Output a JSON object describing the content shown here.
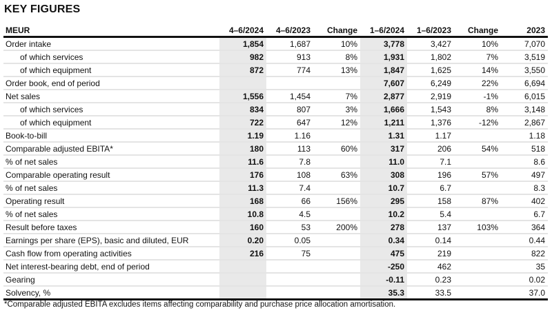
{
  "title": "KEY FIGURES",
  "headers": [
    "MEUR",
    "4–6/2024",
    "4–6/2023",
    "Change",
    "1–6/2024",
    "1–6/2023",
    "Change",
    "2023"
  ],
  "rows": [
    {
      "label": "Order intake",
      "indent": false,
      "values": [
        "1,854",
        "1,687",
        "10%",
        "3,778",
        "3,427",
        "10%",
        "7,070"
      ]
    },
    {
      "label": "of which services",
      "indent": true,
      "values": [
        "982",
        "913",
        "8%",
        "1,931",
        "1,802",
        "7%",
        "3,519"
      ]
    },
    {
      "label": "of which equipment",
      "indent": true,
      "values": [
        "872",
        "774",
        "13%",
        "1,847",
        "1,625",
        "14%",
        "3,550"
      ]
    },
    {
      "label": "Order book, end of period",
      "indent": false,
      "values": [
        "",
        "",
        "",
        "7,607",
        "6,249",
        "22%",
        "6,694"
      ]
    },
    {
      "label": "Net sales",
      "indent": false,
      "values": [
        "1,556",
        "1,454",
        "7%",
        "2,877",
        "2,919",
        "-1%",
        "6,015"
      ]
    },
    {
      "label": "of which services",
      "indent": true,
      "values": [
        "834",
        "807",
        "3%",
        "1,666",
        "1,543",
        "8%",
        "3,148"
      ]
    },
    {
      "label": "of which equipment",
      "indent": true,
      "values": [
        "722",
        "647",
        "12%",
        "1,211",
        "1,376",
        "-12%",
        "2,867"
      ]
    },
    {
      "label": "Book-to-bill",
      "indent": false,
      "values": [
        "1.19",
        "1.16",
        "",
        "1.31",
        "1.17",
        "",
        "1.18"
      ]
    },
    {
      "label": "Comparable adjusted EBITA*",
      "indent": false,
      "values": [
        "180",
        "113",
        "60%",
        "317",
        "206",
        "54%",
        "518"
      ]
    },
    {
      "label": "% of net sales",
      "indent": false,
      "values": [
        "11.6",
        "7.8",
        "",
        "11.0",
        "7.1",
        "",
        "8.6"
      ]
    },
    {
      "label": "Comparable operating result",
      "indent": false,
      "values": [
        "176",
        "108",
        "63%",
        "308",
        "196",
        "57%",
        "497"
      ]
    },
    {
      "label": "% of net sales",
      "indent": false,
      "values": [
        "11.3",
        "7.4",
        "",
        "10.7",
        "6.7",
        "",
        "8.3"
      ]
    },
    {
      "label": "Operating result",
      "indent": false,
      "values": [
        "168",
        "66",
        "156%",
        "295",
        "158",
        "87%",
        "402"
      ]
    },
    {
      "label": "% of net sales",
      "indent": false,
      "values": [
        "10.8",
        "4.5",
        "",
        "10.2",
        "5.4",
        "",
        "6.7"
      ]
    },
    {
      "label": "Result before taxes",
      "indent": false,
      "values": [
        "160",
        "53",
        "200%",
        "278",
        "137",
        "103%",
        "364"
      ]
    },
    {
      "label": "Earnings per share (EPS), basic and diluted, EUR",
      "indent": false,
      "values": [
        "0.20",
        "0.05",
        "",
        "0.34",
        "0.14",
        "",
        "0.44"
      ]
    },
    {
      "label": "Cash flow from operating activities",
      "indent": false,
      "values": [
        "216",
        "75",
        "",
        "475",
        "219",
        "",
        "822"
      ]
    },
    {
      "label": "Net interest-bearing debt, end of period",
      "indent": false,
      "values": [
        "",
        "",
        "",
        "-250",
        "462",
        "",
        "35"
      ]
    },
    {
      "label": "Gearing",
      "indent": false,
      "values": [
        "",
        "",
        "",
        "-0.11",
        "0.23",
        "",
        "0.02"
      ]
    },
    {
      "label": "Solvency, %",
      "indent": false,
      "values": [
        "",
        "",
        "",
        "35.3",
        "33.5",
        "",
        "37.0"
      ]
    }
  ],
  "footnote": "*Comparable adjusted EBITA excludes items affecting comparability and purchase price allocation amortisation.",
  "colors": {
    "highlight_column": "#e9e9e9",
    "rule": "#111111",
    "row_divider": "#e4e4e4"
  }
}
